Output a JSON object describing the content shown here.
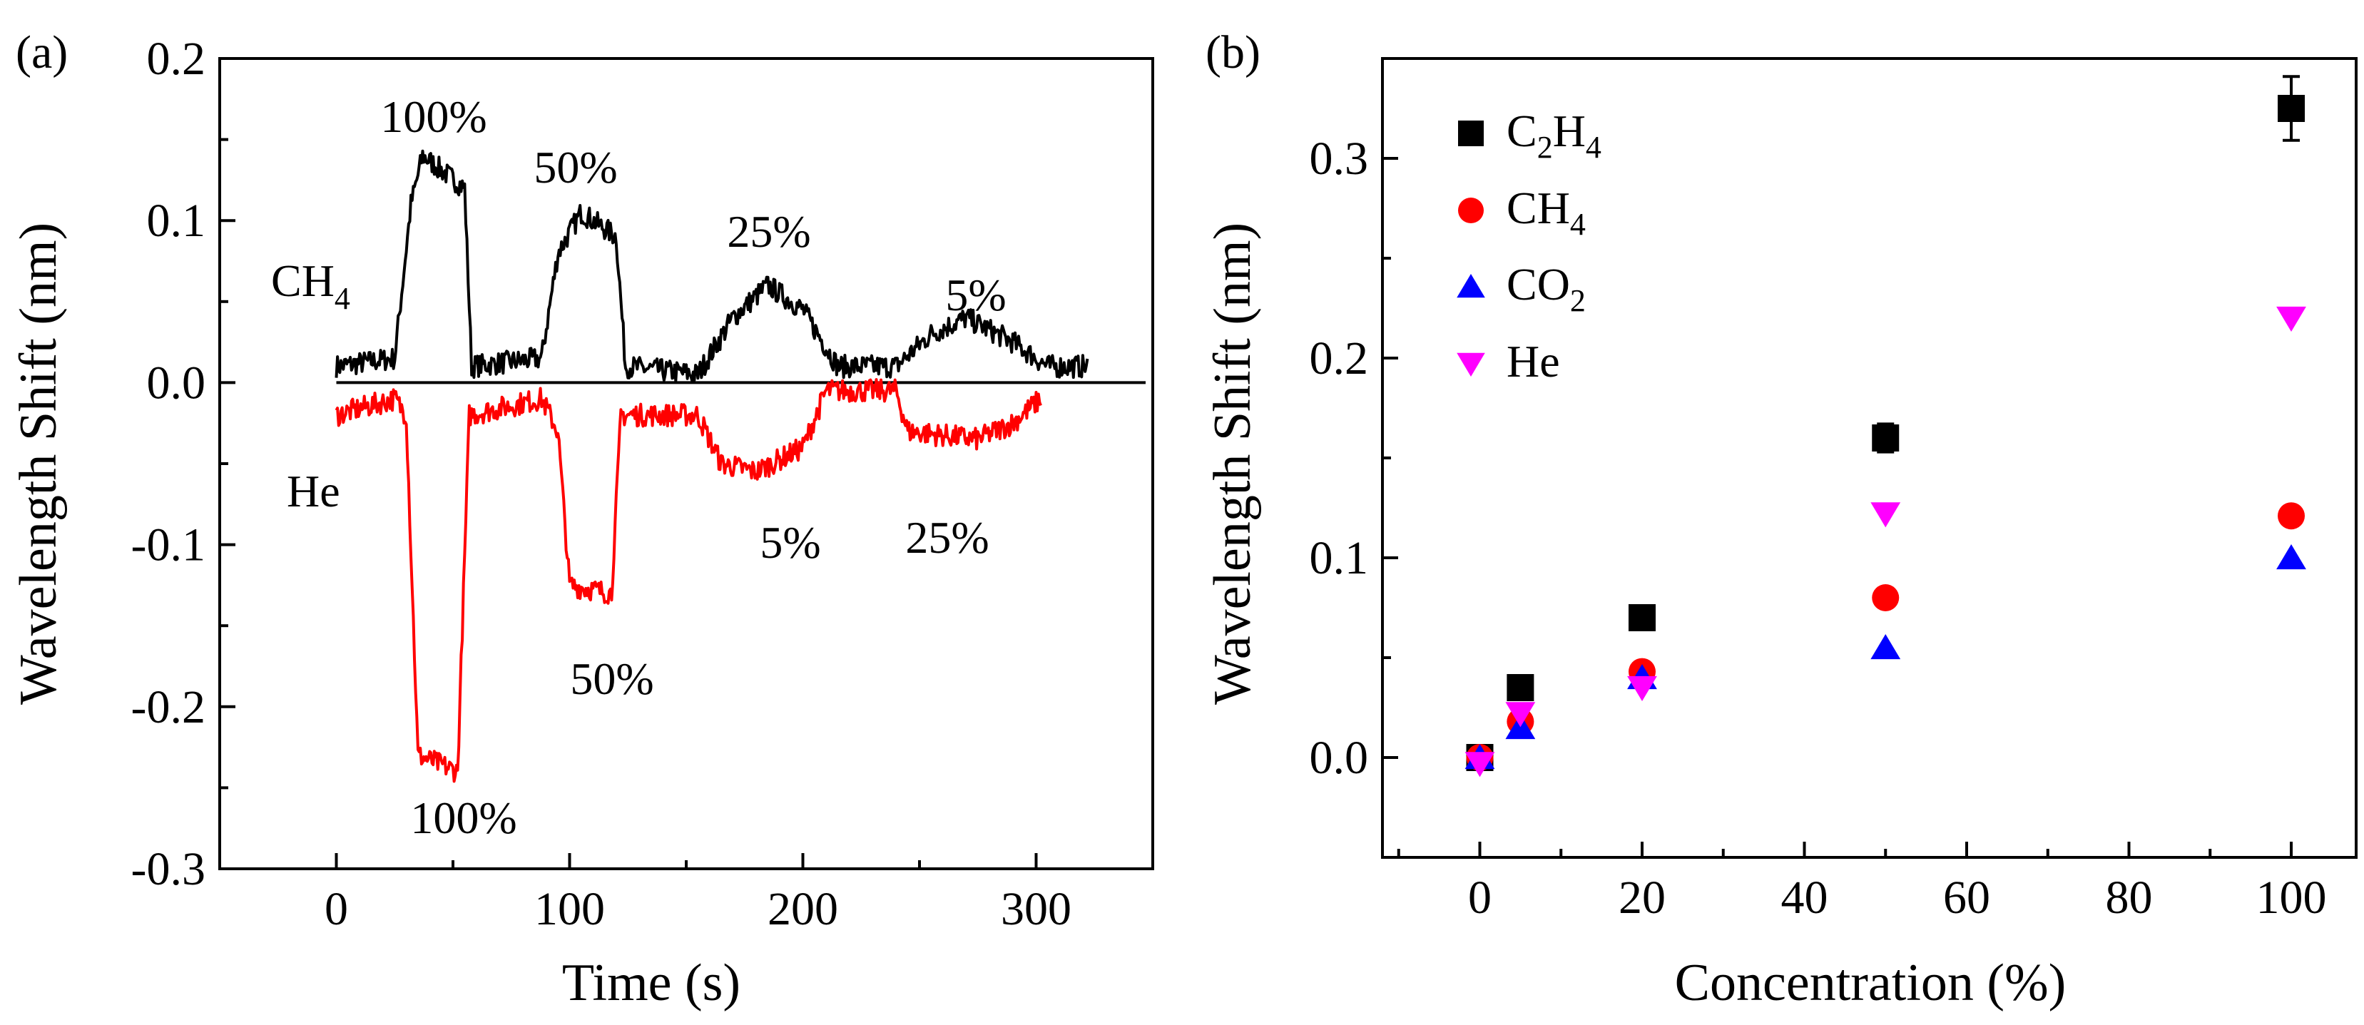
{
  "chart_data": [
    {
      "panel": "(a)",
      "type": "line",
      "xlabel": "Time (s)",
      "ylabel": "Wavelength Shift (nm)",
      "xlim": [
        -50,
        350
      ],
      "ylim": [
        -0.3,
        0.2
      ],
      "xticks": [
        "0",
        "100",
        "200",
        "300"
      ],
      "yticks": [
        "-0.3",
        "-0.2",
        "-0.1",
        "0.0",
        "0.1",
        "0.2"
      ],
      "baseline": 0.0,
      "series": [
        {
          "name": "CH4",
          "label": "CH",
          "label_sub": "4",
          "color": "#000000",
          "levels": [
            [
              0,
              0.01
            ],
            [
              25,
              0.015
            ],
            [
              32,
              0.11
            ],
            [
              37,
              0.14
            ],
            [
              55,
              0.12
            ],
            [
              58,
              0.01
            ],
            [
              88,
              0.015
            ],
            [
              95,
              0.08
            ],
            [
              105,
              0.105
            ],
            [
              120,
              0.09
            ],
            [
              124,
              0.01
            ],
            [
              155,
              0.005
            ],
            [
              170,
              0.04
            ],
            [
              185,
              0.06
            ],
            [
              200,
              0.045
            ],
            [
              215,
              0.01
            ],
            [
              240,
              0.01
            ],
            [
              255,
              0.03
            ],
            [
              270,
              0.04
            ],
            [
              290,
              0.025
            ],
            [
              305,
              0.01
            ],
            [
              322,
              0.01
            ]
          ],
          "annotations": [
            "100%",
            "50%",
            "25%",
            "5%"
          ]
        },
        {
          "name": "He",
          "label": "He",
          "color": "#ff0000",
          "levels": [
            [
              0,
              -0.02
            ],
            [
              25,
              -0.01
            ],
            [
              30,
              -0.02
            ],
            [
              35,
              -0.23
            ],
            [
              52,
              -0.24
            ],
            [
              57,
              -0.02
            ],
            [
              88,
              -0.01
            ],
            [
              95,
              -0.03
            ],
            [
              100,
              -0.125
            ],
            [
              118,
              -0.13
            ],
            [
              122,
              -0.02
            ],
            [
              155,
              -0.02
            ],
            [
              165,
              -0.05
            ],
            [
              180,
              -0.055
            ],
            [
              200,
              -0.04
            ],
            [
              210,
              -0.005
            ],
            [
              240,
              -0.005
            ],
            [
              245,
              -0.03
            ],
            [
              275,
              -0.035
            ],
            [
              290,
              -0.025
            ],
            [
              302,
              -0.01
            ]
          ],
          "annotations": [
            "100%",
            "50%",
            "25%",
            "5%"
          ]
        }
      ]
    },
    {
      "panel": "(b)",
      "type": "scatter",
      "xlabel": "Concentration (%)",
      "ylabel": "Wavelength Shift (nm)",
      "xlim": [
        -12,
        108
      ],
      "ylim": [
        -0.05,
        0.35
      ],
      "xticks": [
        "0",
        "20",
        "40",
        "60",
        "80",
        "100"
      ],
      "yticks": [
        "0.0",
        "0.1",
        "0.2",
        "0.3"
      ],
      "series": [
        {
          "name": "C2H4",
          "label": "C",
          "sub1": "2",
          "mid": "H",
          "sub2": "4",
          "marker": "square",
          "color": "#000000",
          "x": [
            0,
            5,
            20,
            50,
            100
          ],
          "y": [
            0.0,
            0.035,
            0.07,
            0.16,
            0.325
          ],
          "err": [
            0.0,
            0.002,
            0.002,
            0.007,
            0.016
          ]
        },
        {
          "name": "CH4",
          "label": "CH",
          "sub1": "4",
          "marker": "circle",
          "color": "#ff0000",
          "x": [
            0,
            5,
            20,
            50,
            100
          ],
          "y": [
            0.0,
            0.018,
            0.043,
            0.08,
            0.121
          ]
        },
        {
          "name": "CO2",
          "label": "CO",
          "sub1": "2",
          "marker": "triangle-up",
          "color": "#0000ff",
          "x": [
            0,
            5,
            20,
            50,
            100
          ],
          "y": [
            0.0,
            0.015,
            0.04,
            0.055,
            0.1
          ]
        },
        {
          "name": "He",
          "label": "He",
          "marker": "triangle-down",
          "color": "#ff00ff",
          "x": [
            0,
            5,
            20,
            50,
            100
          ],
          "y": [
            -0.003,
            0.022,
            0.035,
            0.122,
            0.22
          ]
        }
      ]
    }
  ]
}
